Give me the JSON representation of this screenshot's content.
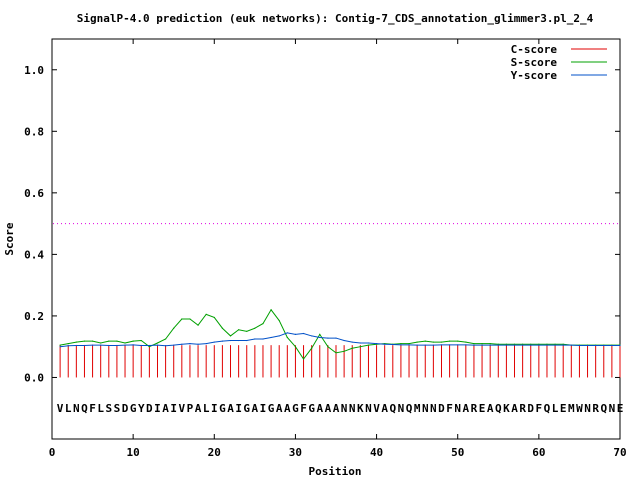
{
  "chart_data": {
    "type": "line",
    "title": "SignalP-4.0 prediction (euk networks): Contig-7_CDS_annotation_glimmer3.pl_2_4",
    "xlabel": "Position",
    "ylabel": "Score",
    "xlim": [
      0,
      70
    ],
    "ylim": [
      -0.2,
      1.1
    ],
    "xticks": [
      "0",
      "10",
      "20",
      "30",
      "40",
      "50",
      "60",
      "70"
    ],
    "yticks": [
      "0.0",
      "0.2",
      "0.4",
      "0.6",
      "0.8",
      "1.0"
    ],
    "xtick_values": [
      0,
      10,
      20,
      30,
      40,
      50,
      60,
      70
    ],
    "ytick_values": [
      0.0,
      0.2,
      0.4,
      0.6,
      0.8,
      1.0
    ],
    "threshold": 0.5,
    "legend_position": "top-right",
    "sequence": "VLNQFLSSDGYDIAIVPALIGAIGAIGAAGFGAAANNKNVAQNQMNNDFNAREAQKARDFQLEMWNRQNE",
    "x": [
      1,
      2,
      3,
      4,
      5,
      6,
      7,
      8,
      9,
      10,
      11,
      12,
      13,
      14,
      15,
      16,
      17,
      18,
      19,
      20,
      21,
      22,
      23,
      24,
      25,
      26,
      27,
      28,
      29,
      30,
      31,
      32,
      33,
      34,
      35,
      36,
      37,
      38,
      39,
      40,
      41,
      42,
      43,
      44,
      45,
      46,
      47,
      48,
      49,
      50,
      51,
      52,
      53,
      54,
      55,
      56,
      57,
      58,
      59,
      60,
      61,
      62,
      63,
      64,
      65,
      66,
      67,
      68,
      69,
      70
    ],
    "series": [
      {
        "name": "C-score",
        "color": "#e00000",
        "style": "impulses",
        "values": [
          0.105,
          0.105,
          0.105,
          0.105,
          0.105,
          0.105,
          0.105,
          0.105,
          0.105,
          0.105,
          0.105,
          0.105,
          0.105,
          0.105,
          0.105,
          0.105,
          0.105,
          0.105,
          0.105,
          0.105,
          0.105,
          0.105,
          0.105,
          0.105,
          0.105,
          0.105,
          0.105,
          0.105,
          0.105,
          0.105,
          0.105,
          0.105,
          0.105,
          0.105,
          0.105,
          0.105,
          0.105,
          0.105,
          0.105,
          0.105,
          0.105,
          0.105,
          0.105,
          0.105,
          0.105,
          0.105,
          0.105,
          0.105,
          0.105,
          0.105,
          0.105,
          0.105,
          0.105,
          0.105,
          0.105,
          0.105,
          0.105,
          0.105,
          0.105,
          0.105,
          0.105,
          0.105,
          0.105,
          0.105,
          0.105,
          0.105,
          0.105,
          0.105,
          0.105,
          0.105
        ]
      },
      {
        "name": "S-score",
        "color": "#00a000",
        "style": "line",
        "values": [
          0.105,
          0.11,
          0.115,
          0.118,
          0.118,
          0.112,
          0.118,
          0.118,
          0.112,
          0.118,
          0.12,
          0.1,
          0.112,
          0.125,
          0.16,
          0.19,
          0.19,
          0.17,
          0.205,
          0.195,
          0.16,
          0.135,
          0.155,
          0.15,
          0.16,
          0.175,
          0.22,
          0.185,
          0.13,
          0.1,
          0.06,
          0.095,
          0.14,
          0.1,
          0.08,
          0.085,
          0.095,
          0.1,
          0.105,
          0.108,
          0.11,
          0.108,
          0.11,
          0.11,
          0.115,
          0.118,
          0.115,
          0.115,
          0.118,
          0.118,
          0.115,
          0.11,
          0.11,
          0.11,
          0.108,
          0.108,
          0.108,
          0.108,
          0.108,
          0.108,
          0.108,
          0.108,
          0.108,
          0.105,
          0.105,
          0.105,
          0.105,
          0.105,
          0.105,
          0.105
        ]
      },
      {
        "name": "Y-score",
        "color": "#0050c8",
        "style": "line",
        "values": [
          0.1,
          0.103,
          0.104,
          0.104,
          0.105,
          0.105,
          0.104,
          0.104,
          0.105,
          0.106,
          0.104,
          0.104,
          0.105,
          0.103,
          0.105,
          0.108,
          0.11,
          0.108,
          0.11,
          0.115,
          0.118,
          0.12,
          0.12,
          0.12,
          0.125,
          0.125,
          0.13,
          0.135,
          0.145,
          0.14,
          0.143,
          0.135,
          0.13,
          0.128,
          0.128,
          0.12,
          0.115,
          0.112,
          0.112,
          0.11,
          0.108,
          0.107,
          0.106,
          0.106,
          0.105,
          0.105,
          0.105,
          0.106,
          0.106,
          0.106,
          0.106,
          0.105,
          0.105,
          0.105,
          0.105,
          0.105,
          0.105,
          0.105,
          0.105,
          0.105,
          0.105,
          0.105,
          0.105,
          0.105,
          0.104,
          0.104,
          0.104,
          0.104,
          0.104,
          0.104
        ]
      }
    ]
  }
}
